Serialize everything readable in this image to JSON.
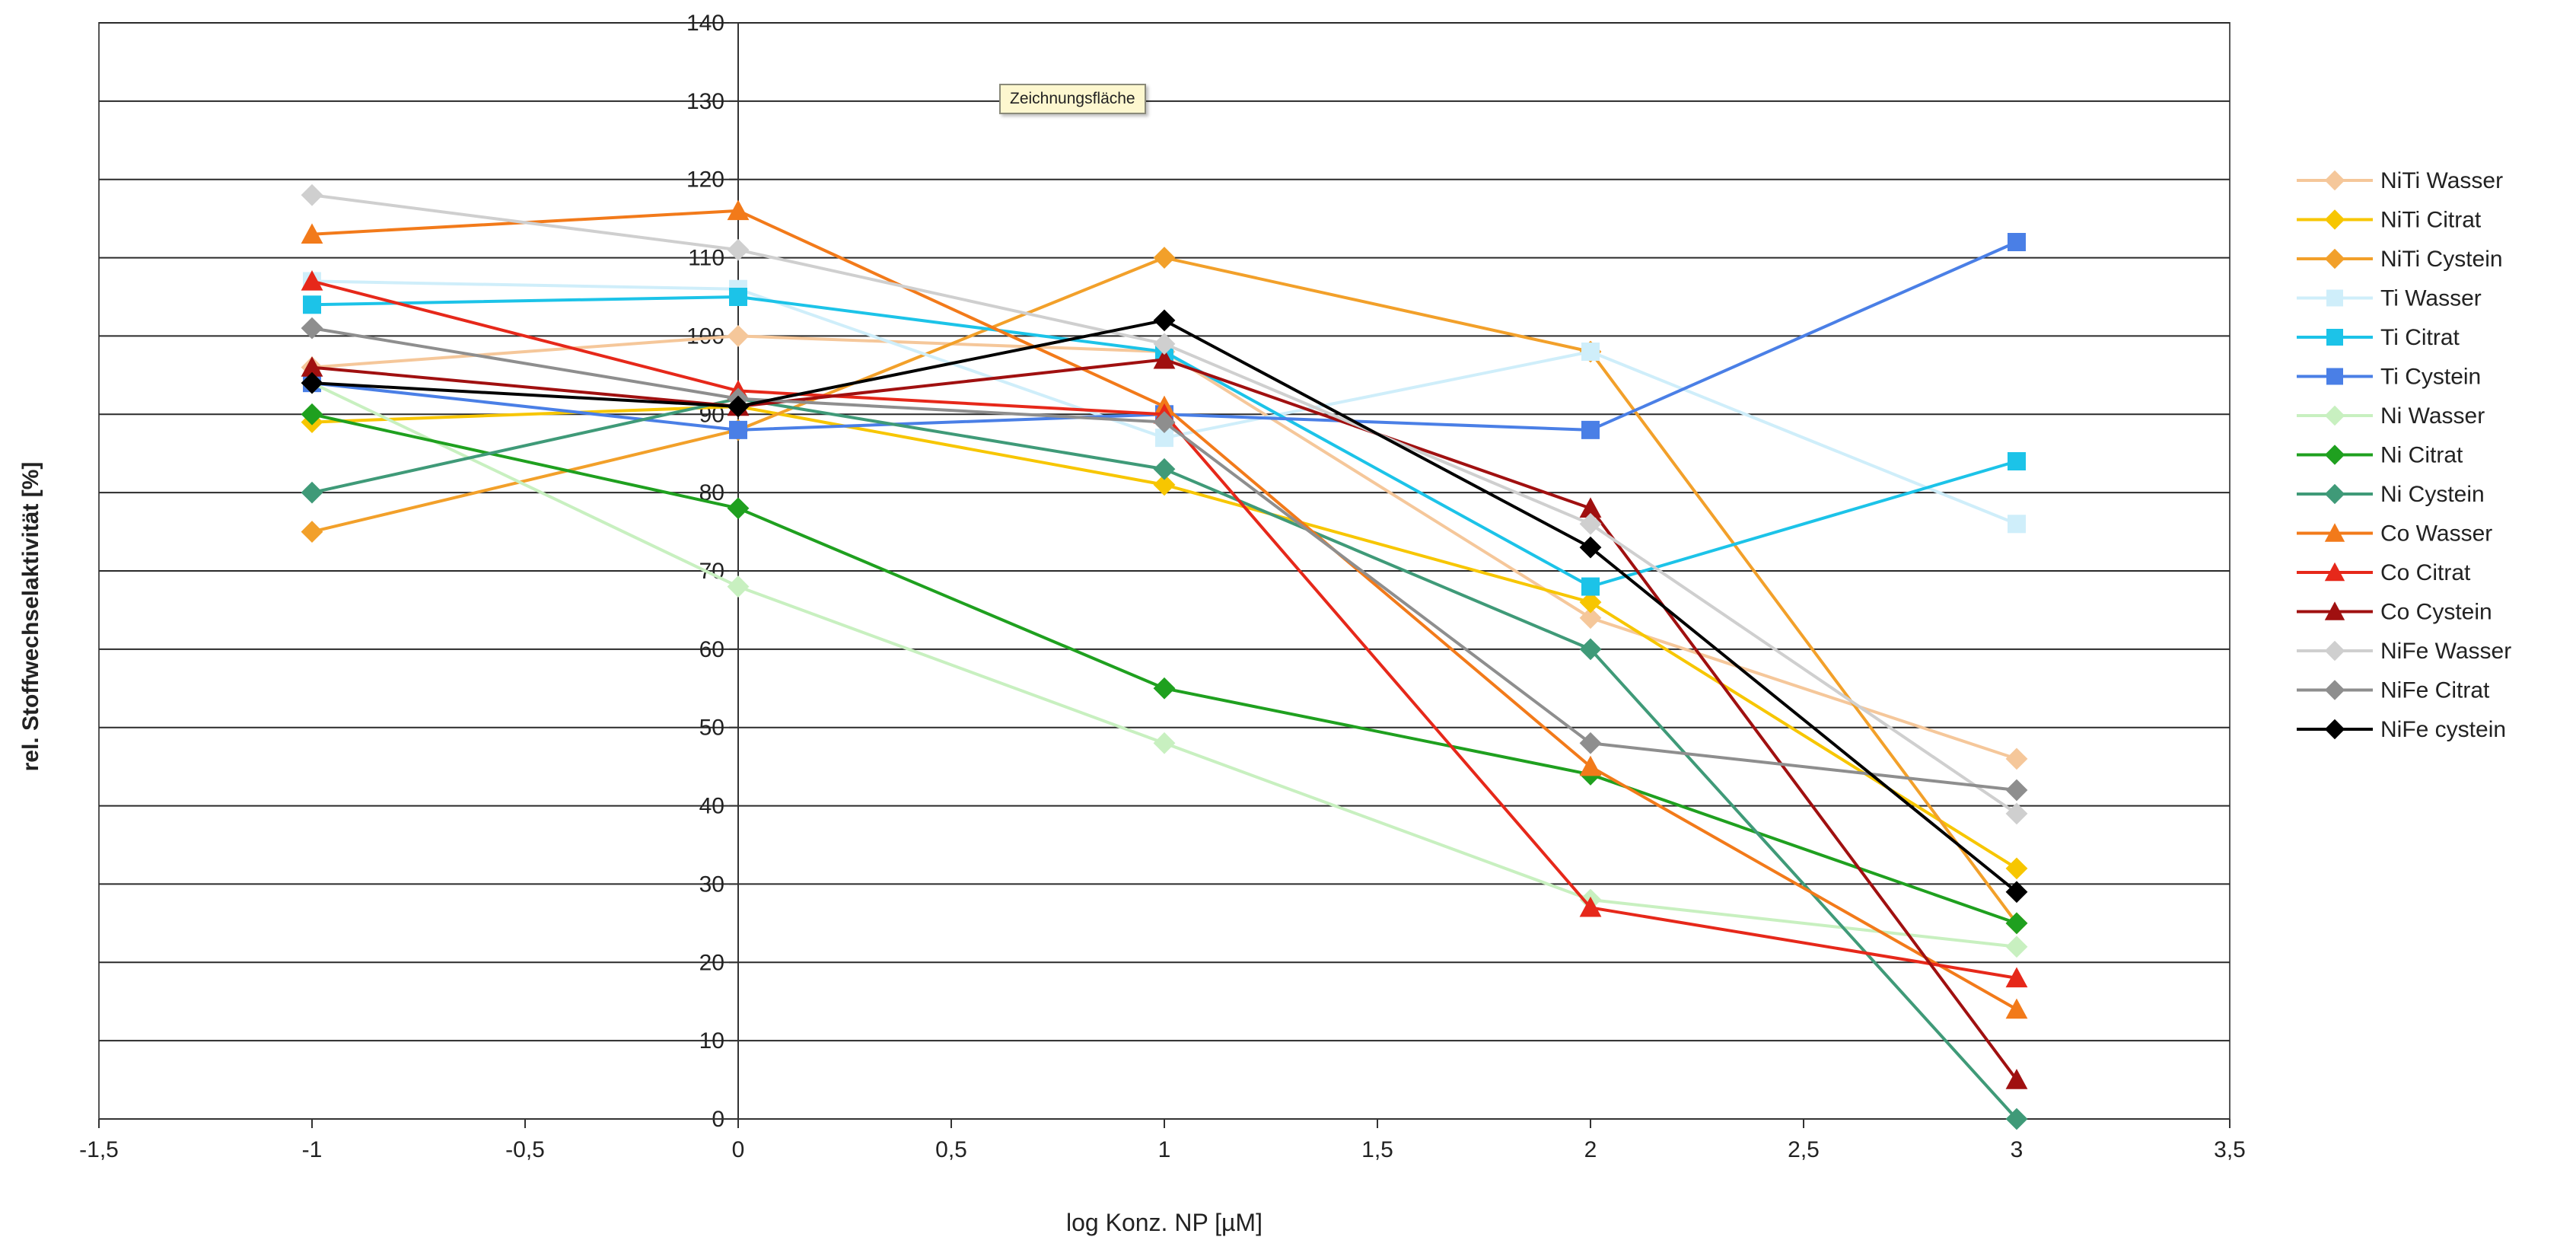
{
  "chart_data": {
    "type": "line",
    "xlabel": "log Konz. NP [µM]",
    "ylabel": "rel. Stoffwechselaktivität [%]",
    "xlim": [
      -1.5,
      3.5
    ],
    "ylim": [
      0,
      140
    ],
    "x_ticks": [
      "-1,5",
      "-1",
      "-0,5",
      "0",
      "0,5",
      "1",
      "1,5",
      "2",
      "2,5",
      "3",
      "3,5"
    ],
    "y_ticks": [
      "0",
      "10",
      "20",
      "30",
      "40",
      "50",
      "60",
      "70",
      "80",
      "90",
      "100",
      "110",
      "120",
      "130",
      "140"
    ],
    "grid": "horizontal",
    "legend_position": "right",
    "x": [
      -1,
      0,
      1,
      2,
      3
    ],
    "series": [
      {
        "name": "NiTi Wasser",
        "color": "#f5c79a",
        "marker": "diamond",
        "values": [
          96,
          100,
          98,
          64,
          46
        ]
      },
      {
        "name": "NiTi Citrat",
        "color": "#f7c600",
        "marker": "diamond",
        "values": [
          89,
          91,
          81,
          66,
          32
        ]
      },
      {
        "name": "NiTi Cystein",
        "color": "#f2a02a",
        "marker": "diamond",
        "values": [
          75,
          88,
          110,
          98,
          25
        ]
      },
      {
        "name": "Ti Wasser",
        "color": "#cfeefa",
        "marker": "square",
        "values": [
          107,
          106,
          87,
          98,
          76
        ]
      },
      {
        "name": "Ti Citrat",
        "color": "#1cc3e8",
        "marker": "square",
        "values": [
          104,
          105,
          98,
          68,
          84
        ]
      },
      {
        "name": "Ti Cystein",
        "color": "#4a7fe6",
        "marker": "square",
        "values": [
          94,
          88,
          90,
          88,
          112
        ]
      },
      {
        "name": "Ni Wasser",
        "color": "#c8f0c0",
        "marker": "diamond",
        "values": [
          94,
          68,
          48,
          28,
          22
        ]
      },
      {
        "name": "Ni Citrat",
        "color": "#1fa01f",
        "marker": "diamond",
        "values": [
          90,
          78,
          55,
          44,
          25
        ]
      },
      {
        "name": "Ni Cystein",
        "color": "#3f9a78",
        "marker": "diamond",
        "values": [
          80,
          92,
          83,
          60,
          0
        ]
      },
      {
        "name": "Co Wasser",
        "color": "#f27a1a",
        "marker": "triangle",
        "values": [
          113,
          116,
          91,
          45,
          14
        ]
      },
      {
        "name": "Co Citrat",
        "color": "#e6281a",
        "marker": "triangle",
        "values": [
          107,
          93,
          90,
          27,
          18
        ]
      },
      {
        "name": "Co Cystein",
        "color": "#a01010",
        "marker": "triangle",
        "values": [
          96,
          91,
          97,
          78,
          5
        ]
      },
      {
        "name": "NiFe Wasser",
        "color": "#cfcfcf",
        "marker": "diamond",
        "values": [
          118,
          111,
          99,
          76,
          39
        ]
      },
      {
        "name": "NiFe Citrat",
        "color": "#8e8e8e",
        "marker": "diamond",
        "values": [
          101,
          92,
          89,
          48,
          42
        ]
      },
      {
        "name": "NiFe cystein",
        "color": "#000000",
        "marker": "diamond",
        "values": [
          94,
          91,
          102,
          73,
          29
        ]
      }
    ]
  },
  "tooltip": {
    "label": "Zeichnungsfläche"
  }
}
